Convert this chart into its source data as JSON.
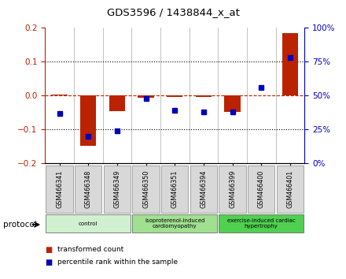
{
  "title": "GDS3596 / 1438844_x_at",
  "samples": [
    "GSM466341",
    "GSM466348",
    "GSM466349",
    "GSM466350",
    "GSM466351",
    "GSM466394",
    "GSM466399",
    "GSM466400",
    "GSM466401"
  ],
  "red_bars": [
    0.002,
    -0.148,
    -0.045,
    -0.006,
    -0.003,
    -0.005,
    -0.048,
    0.0,
    0.185
  ],
  "blue_pct": [
    37,
    20,
    24,
    48,
    39,
    38,
    38,
    56,
    78
  ],
  "red_bar_color": "#bb2200",
  "blue_dot_color": "#0000bb",
  "ylim_left": [
    -0.2,
    0.2
  ],
  "ylim_right": [
    0,
    100
  ],
  "yticks_left": [
    -0.2,
    -0.1,
    0.0,
    0.1,
    0.2
  ],
  "yticks_right": [
    0,
    25,
    50,
    75,
    100
  ],
  "ytick_labels_right": [
    "0%",
    "25%",
    "50%",
    "75%",
    "100%"
  ],
  "groups": [
    {
      "label": "control",
      "start": 0,
      "end": 3,
      "color": "#d0f0d0"
    },
    {
      "label": "isoproterenol-induced\ncardiomyopathy",
      "start": 3,
      "end": 6,
      "color": "#a0e090"
    },
    {
      "label": "exercise-induced cardiac\nhypertrophy",
      "start": 6,
      "end": 9,
      "color": "#50d050"
    }
  ],
  "protocol_label": "protocol",
  "legend": [
    {
      "label": "transformed count",
      "color": "#bb2200"
    },
    {
      "label": "percentile rank within the sample",
      "color": "#0000bb"
    }
  ],
  "bg_color": "#ffffff"
}
